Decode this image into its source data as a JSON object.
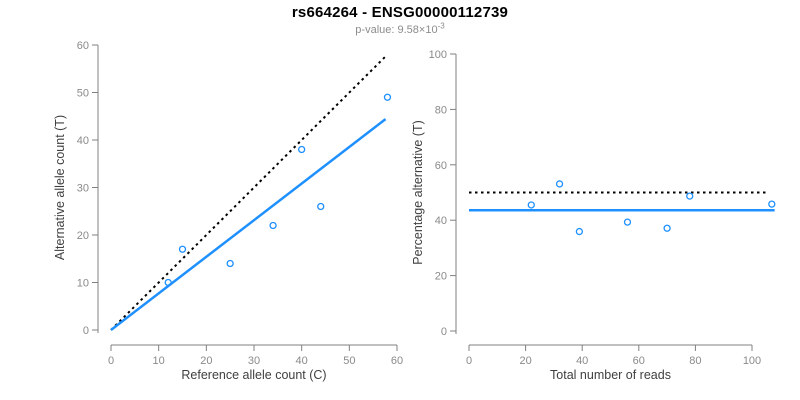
{
  "header": {
    "title": "rs664264 - ENSG00000112739",
    "subtitle_prefix": "p-value: 9.58×10",
    "subtitle_exponent": "-3"
  },
  "colors": {
    "accent": "#1E90FF",
    "dotted_line": "#000000",
    "axis": "#808080",
    "tick_label": "#8a8a8a",
    "axis_title": "#404040",
    "title": "#000000",
    "subtitle": "#8C8C8C"
  },
  "chart_data": [
    {
      "type": "scatter",
      "title": "rs664264 - ENSG00000112739",
      "xlabel": "Reference allele count (C)",
      "ylabel": "Alternative allele count (T)",
      "xlim": [
        0,
        60
      ],
      "ylim": [
        0,
        60
      ],
      "xticks": [
        0,
        10,
        20,
        30,
        40,
        50,
        60
      ],
      "yticks": [
        0,
        10,
        20,
        30,
        40,
        50,
        60
      ],
      "grid": false,
      "legend": null,
      "points": [
        [
          12,
          10
        ],
        [
          15,
          17
        ],
        [
          25,
          14
        ],
        [
          34,
          22
        ],
        [
          40,
          38
        ],
        [
          44,
          26
        ],
        [
          58,
          49
        ]
      ],
      "lines": [
        {
          "name": "identity-line",
          "style": "dotted",
          "color": "#000000",
          "width": 2,
          "x1": 0,
          "y1": 0,
          "x2": 57.5,
          "y2": 57.5
        },
        {
          "name": "regression-line",
          "style": "solid",
          "color": "#1E90FF",
          "width": 2.5,
          "x1": 0,
          "y1": 0,
          "x2": 57.6,
          "y2": 44.4
        }
      ]
    },
    {
      "type": "scatter",
      "title": "",
      "xlabel": "Total number of reads",
      "ylabel": "Percentage alternative (T)",
      "xlim": [
        0,
        108
      ],
      "ylim": [
        0,
        100
      ],
      "xticks": [
        0,
        20,
        40,
        60,
        80,
        100
      ],
      "yticks": [
        0,
        20,
        40,
        60,
        80,
        100
      ],
      "grid": false,
      "legend": null,
      "points": [
        [
          22,
          45.5
        ],
        [
          32,
          53.1
        ],
        [
          39,
          35.9
        ],
        [
          56,
          39.3
        ],
        [
          70,
          37.1
        ],
        [
          78,
          48.7
        ],
        [
          107,
          45.8
        ]
      ],
      "lines": [
        {
          "name": "fifty-percent-line",
          "style": "dotted",
          "color": "#000000",
          "width": 2,
          "x1": 0,
          "y1": 50,
          "x2": 105.5,
          "y2": 50
        },
        {
          "name": "mean-percentage-line",
          "style": "solid",
          "color": "#1E90FF",
          "width": 2.5,
          "x1": 0,
          "y1": 43.6,
          "x2": 108,
          "y2": 43.6
        }
      ]
    }
  ]
}
